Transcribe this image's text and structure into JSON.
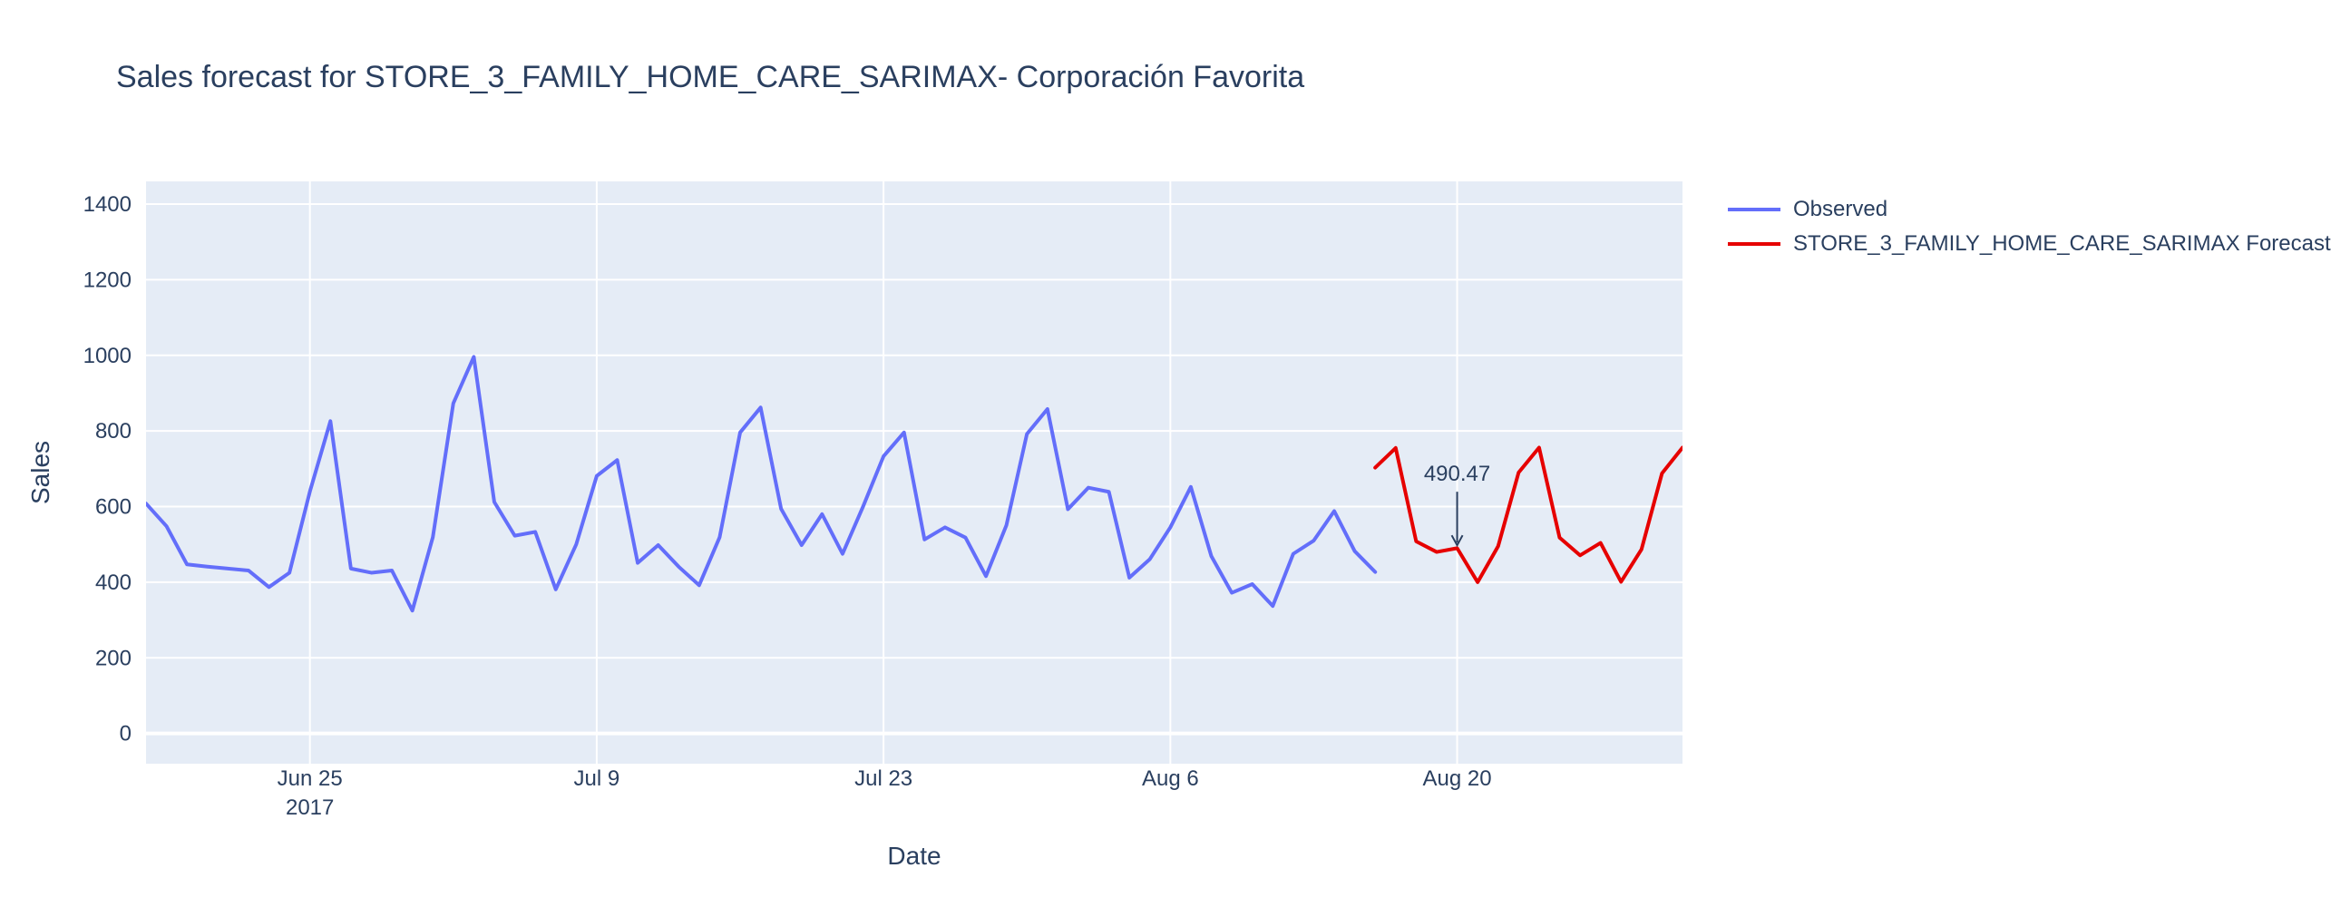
{
  "chart_data": {
    "type": "line",
    "title": "Sales forecast for STORE_3_FAMILY_HOME_CARE_SARIMAX- Corporación Favorita",
    "xlabel": "Date",
    "ylabel": "Sales",
    "x_ticks": [
      {
        "date": "2017-06-25",
        "label": "Jun 25",
        "sublabel": "2017"
      },
      {
        "date": "2017-07-09",
        "label": "Jul 9",
        "sublabel": ""
      },
      {
        "date": "2017-07-23",
        "label": "Jul 23",
        "sublabel": ""
      },
      {
        "date": "2017-08-06",
        "label": "Aug 6",
        "sublabel": ""
      },
      {
        "date": "2017-08-20",
        "label": "Aug 20",
        "sublabel": ""
      }
    ],
    "y_ticks": [
      0,
      200,
      400,
      600,
      800,
      1000,
      1200,
      1400
    ],
    "xlim": [
      "2017-06-17",
      "2017-08-31"
    ],
    "ylim": [
      -80,
      1460
    ],
    "grid": true,
    "legend_position": "right",
    "series": [
      {
        "name": "Observed",
        "color": "#636efa",
        "start_date": "2017-06-17",
        "values": [
          608,
          548,
          447,
          441,
          436,
          431,
          387,
          425,
          640,
          826,
          436,
          425,
          431,
          325,
          519,
          873,
          996,
          612,
          523,
          533,
          381,
          500,
          681,
          723,
          451,
          498,
          441,
          392,
          519,
          796,
          862,
          594,
          498,
          580,
          475,
          600,
          733,
          796,
          513,
          545,
          518,
          416,
          551,
          792,
          858,
          593,
          650,
          639,
          412,
          461,
          545,
          652,
          469,
          372,
          395,
          337,
          475,
          510,
          588,
          482,
          427
        ]
      },
      {
        "name": "STORE_3_FAMILY_HOME_CARE_SARIMAX Forecast",
        "color": "#e60000",
        "start_date": "2017-08-16",
        "values": [
          703,
          755,
          508,
          480,
          490,
          400,
          495,
          690,
          756,
          518,
          471,
          504,
          401,
          487,
          688,
          756
        ]
      }
    ],
    "annotation": {
      "date": "2017-08-20",
      "value": 490.47,
      "text": "490.47"
    }
  }
}
